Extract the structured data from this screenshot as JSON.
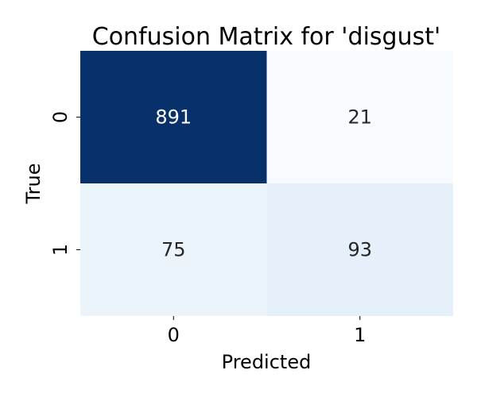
{
  "chart_data": {
    "type": "heatmap",
    "title": "Confusion Matrix for 'disgust'",
    "xlabel": "Predicted",
    "ylabel": "True",
    "x_categories": [
      "0",
      "1"
    ],
    "y_categories": [
      "0",
      "1"
    ],
    "values": [
      [
        891,
        21
      ],
      [
        75,
        93
      ]
    ],
    "colormap": "Blues",
    "colorbar": false,
    "grid": false,
    "colors": {
      "low": "#f7fbff",
      "mid_low": "#e8f0fa",
      "mid": "#e3ecf8",
      "high": "#08306b",
      "text_on_dark": "#ffffff",
      "text_on_light": "#262626"
    }
  }
}
